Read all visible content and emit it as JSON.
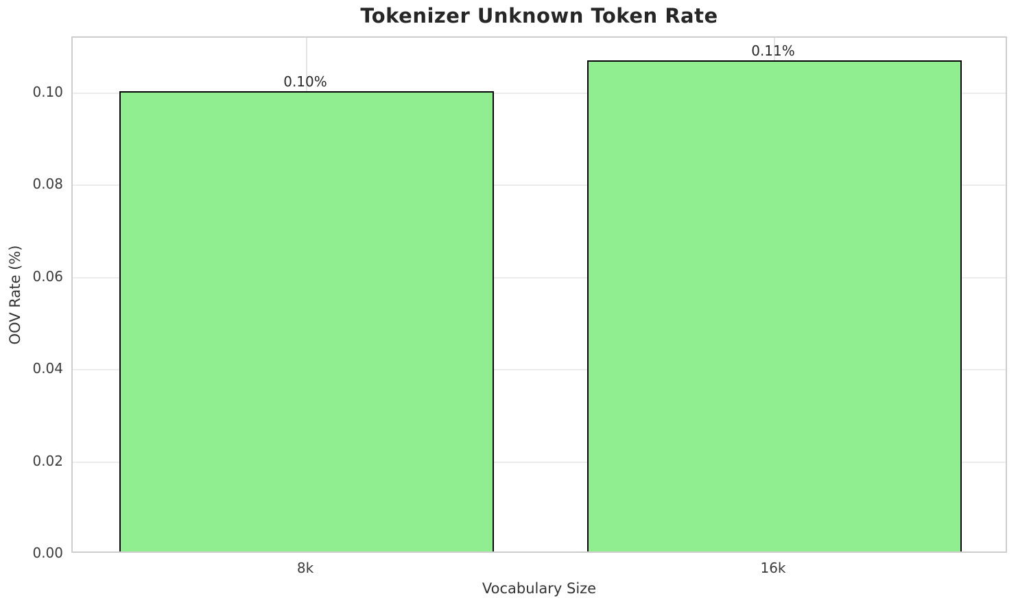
{
  "chart_data": {
    "type": "bar",
    "title": "Tokenizer Unknown Token Rate",
    "xlabel": "Vocabulary Size",
    "ylabel": "OOV Rate (%)",
    "categories": [
      "8k",
      "16k"
    ],
    "values": [
      0.0998,
      0.1065
    ],
    "bar_labels": [
      "0.10%",
      "0.11%"
    ],
    "ytick_values": [
      0.0,
      0.02,
      0.04,
      0.06,
      0.08,
      0.1
    ],
    "ytick_labels": [
      "0.00",
      "0.02",
      "0.04",
      "0.06",
      "0.08",
      "0.10"
    ],
    "ylim": [
      0,
      0.112
    ],
    "grid": true,
    "legend": null,
    "bar_color": "#90EE90",
    "bar_edge_color": "#000000",
    "grid_color": "#ececec",
    "spine_color": "#cdcdcd",
    "title_color": "#262626",
    "tick_label_color": "#3a3a3a"
  }
}
